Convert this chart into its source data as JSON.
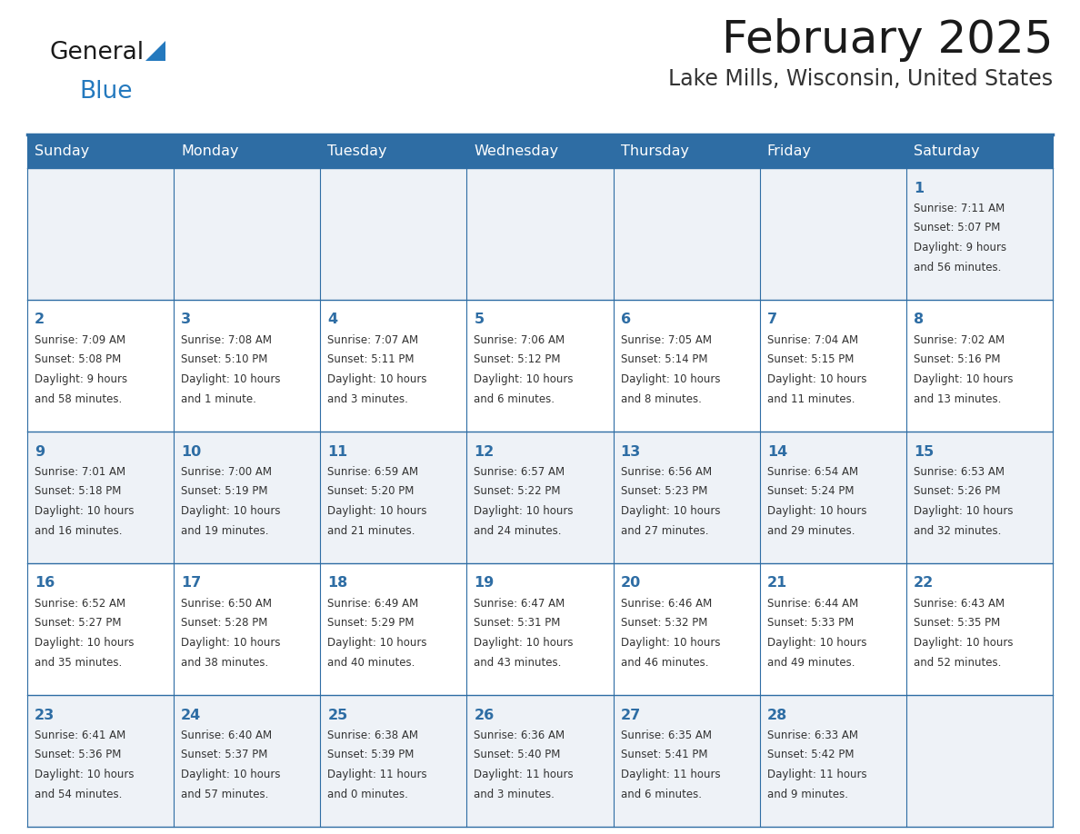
{
  "title": "February 2025",
  "subtitle": "Lake Mills, Wisconsin, United States",
  "header_bg": "#2e6da4",
  "header_text_color": "#ffffff",
  "cell_bg_odd": "#eef2f7",
  "cell_bg_even": "#ffffff",
  "border_color": "#2e6da4",
  "day_headers": [
    "Sunday",
    "Monday",
    "Tuesday",
    "Wednesday",
    "Thursday",
    "Friday",
    "Saturday"
  ],
  "title_color": "#1a1a1a",
  "subtitle_color": "#333333",
  "day_num_color": "#2e6da4",
  "cell_text_color": "#333333",
  "logo_general_color": "#1a1a1a",
  "logo_blue_color": "#2479be",
  "weeks": [
    [
      {
        "day": null,
        "sunrise": null,
        "sunset": null,
        "daylight": null
      },
      {
        "day": null,
        "sunrise": null,
        "sunset": null,
        "daylight": null
      },
      {
        "day": null,
        "sunrise": null,
        "sunset": null,
        "daylight": null
      },
      {
        "day": null,
        "sunrise": null,
        "sunset": null,
        "daylight": null
      },
      {
        "day": null,
        "sunrise": null,
        "sunset": null,
        "daylight": null
      },
      {
        "day": null,
        "sunrise": null,
        "sunset": null,
        "daylight": null
      },
      {
        "day": 1,
        "sunrise": "7:11 AM",
        "sunset": "5:07 PM",
        "daylight": "9 hours\nand 56 minutes."
      }
    ],
    [
      {
        "day": 2,
        "sunrise": "7:09 AM",
        "sunset": "5:08 PM",
        "daylight": "9 hours\nand 58 minutes."
      },
      {
        "day": 3,
        "sunrise": "7:08 AM",
        "sunset": "5:10 PM",
        "daylight": "10 hours\nand 1 minute."
      },
      {
        "day": 4,
        "sunrise": "7:07 AM",
        "sunset": "5:11 PM",
        "daylight": "10 hours\nand 3 minutes."
      },
      {
        "day": 5,
        "sunrise": "7:06 AM",
        "sunset": "5:12 PM",
        "daylight": "10 hours\nand 6 minutes."
      },
      {
        "day": 6,
        "sunrise": "7:05 AM",
        "sunset": "5:14 PM",
        "daylight": "10 hours\nand 8 minutes."
      },
      {
        "day": 7,
        "sunrise": "7:04 AM",
        "sunset": "5:15 PM",
        "daylight": "10 hours\nand 11 minutes."
      },
      {
        "day": 8,
        "sunrise": "7:02 AM",
        "sunset": "5:16 PM",
        "daylight": "10 hours\nand 13 minutes."
      }
    ],
    [
      {
        "day": 9,
        "sunrise": "7:01 AM",
        "sunset": "5:18 PM",
        "daylight": "10 hours\nand 16 minutes."
      },
      {
        "day": 10,
        "sunrise": "7:00 AM",
        "sunset": "5:19 PM",
        "daylight": "10 hours\nand 19 minutes."
      },
      {
        "day": 11,
        "sunrise": "6:59 AM",
        "sunset": "5:20 PM",
        "daylight": "10 hours\nand 21 minutes."
      },
      {
        "day": 12,
        "sunrise": "6:57 AM",
        "sunset": "5:22 PM",
        "daylight": "10 hours\nand 24 minutes."
      },
      {
        "day": 13,
        "sunrise": "6:56 AM",
        "sunset": "5:23 PM",
        "daylight": "10 hours\nand 27 minutes."
      },
      {
        "day": 14,
        "sunrise": "6:54 AM",
        "sunset": "5:24 PM",
        "daylight": "10 hours\nand 29 minutes."
      },
      {
        "day": 15,
        "sunrise": "6:53 AM",
        "sunset": "5:26 PM",
        "daylight": "10 hours\nand 32 minutes."
      }
    ],
    [
      {
        "day": 16,
        "sunrise": "6:52 AM",
        "sunset": "5:27 PM",
        "daylight": "10 hours\nand 35 minutes."
      },
      {
        "day": 17,
        "sunrise": "6:50 AM",
        "sunset": "5:28 PM",
        "daylight": "10 hours\nand 38 minutes."
      },
      {
        "day": 18,
        "sunrise": "6:49 AM",
        "sunset": "5:29 PM",
        "daylight": "10 hours\nand 40 minutes."
      },
      {
        "day": 19,
        "sunrise": "6:47 AM",
        "sunset": "5:31 PM",
        "daylight": "10 hours\nand 43 minutes."
      },
      {
        "day": 20,
        "sunrise": "6:46 AM",
        "sunset": "5:32 PM",
        "daylight": "10 hours\nand 46 minutes."
      },
      {
        "day": 21,
        "sunrise": "6:44 AM",
        "sunset": "5:33 PM",
        "daylight": "10 hours\nand 49 minutes."
      },
      {
        "day": 22,
        "sunrise": "6:43 AM",
        "sunset": "5:35 PM",
        "daylight": "10 hours\nand 52 minutes."
      }
    ],
    [
      {
        "day": 23,
        "sunrise": "6:41 AM",
        "sunset": "5:36 PM",
        "daylight": "10 hours\nand 54 minutes."
      },
      {
        "day": 24,
        "sunrise": "6:40 AM",
        "sunset": "5:37 PM",
        "daylight": "10 hours\nand 57 minutes."
      },
      {
        "day": 25,
        "sunrise": "6:38 AM",
        "sunset": "5:39 PM",
        "daylight": "11 hours\nand 0 minutes."
      },
      {
        "day": 26,
        "sunrise": "6:36 AM",
        "sunset": "5:40 PM",
        "daylight": "11 hours\nand 3 minutes."
      },
      {
        "day": 27,
        "sunrise": "6:35 AM",
        "sunset": "5:41 PM",
        "daylight": "11 hours\nand 6 minutes."
      },
      {
        "day": 28,
        "sunrise": "6:33 AM",
        "sunset": "5:42 PM",
        "daylight": "11 hours\nand 9 minutes."
      },
      {
        "day": null,
        "sunrise": null,
        "sunset": null,
        "daylight": null
      }
    ]
  ]
}
